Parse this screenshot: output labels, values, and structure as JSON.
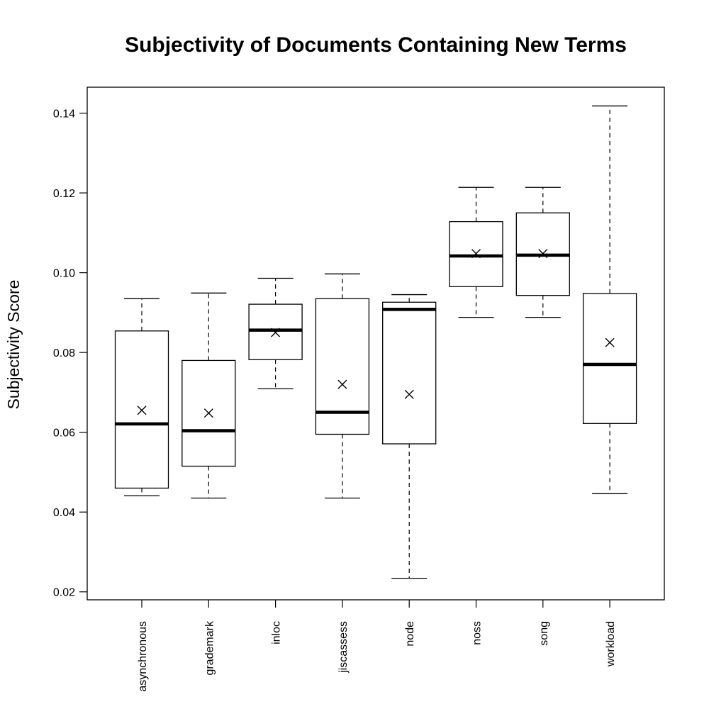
{
  "chart_data": {
    "type": "box",
    "title": "Subjectivity of Documents Containing New Terms",
    "ylabel": "Subjectivity Score",
    "xlabel": "",
    "ylim": [
      0.018,
      0.1465
    ],
    "yticks": [
      0.02,
      0.04,
      0.06,
      0.08,
      0.1,
      0.12,
      0.14
    ],
    "ytick_labels": [
      "0.02",
      "0.04",
      "0.06",
      "0.08",
      "0.10",
      "0.12",
      "0.14"
    ],
    "grid": false,
    "legend": "none",
    "categories": [
      "asynchronous",
      "grademark",
      "inloc",
      "jiscassess",
      "node",
      "noss",
      "song",
      "workload"
    ],
    "boxes": [
      {
        "min": 0.0441,
        "q1": 0.046,
        "median": 0.0621,
        "q3": 0.0854,
        "max": 0.0935,
        "mean": 0.0655
      },
      {
        "min": 0.0435,
        "q1": 0.0515,
        "median": 0.0604,
        "q3": 0.078,
        "max": 0.0949,
        "mean": 0.0648
      },
      {
        "min": 0.0709,
        "q1": 0.0782,
        "median": 0.0856,
        "q3": 0.0921,
        "max": 0.0986,
        "mean": 0.085
      },
      {
        "min": 0.0435,
        "q1": 0.0595,
        "median": 0.065,
        "q3": 0.0935,
        "max": 0.0997,
        "mean": 0.072
      },
      {
        "min": 0.0234,
        "q1": 0.0571,
        "median": 0.0908,
        "q3": 0.0926,
        "max": 0.0945,
        "mean": 0.0695
      },
      {
        "min": 0.0888,
        "q1": 0.0965,
        "median": 0.1042,
        "q3": 0.1128,
        "max": 0.1214,
        "mean": 0.1048
      },
      {
        "min": 0.0888,
        "q1": 0.0943,
        "median": 0.1044,
        "q3": 0.115,
        "max": 0.1214,
        "mean": 0.1048
      },
      {
        "min": 0.0446,
        "q1": 0.0622,
        "median": 0.077,
        "q3": 0.0948,
        "max": 0.1418,
        "mean": 0.0825
      }
    ]
  }
}
